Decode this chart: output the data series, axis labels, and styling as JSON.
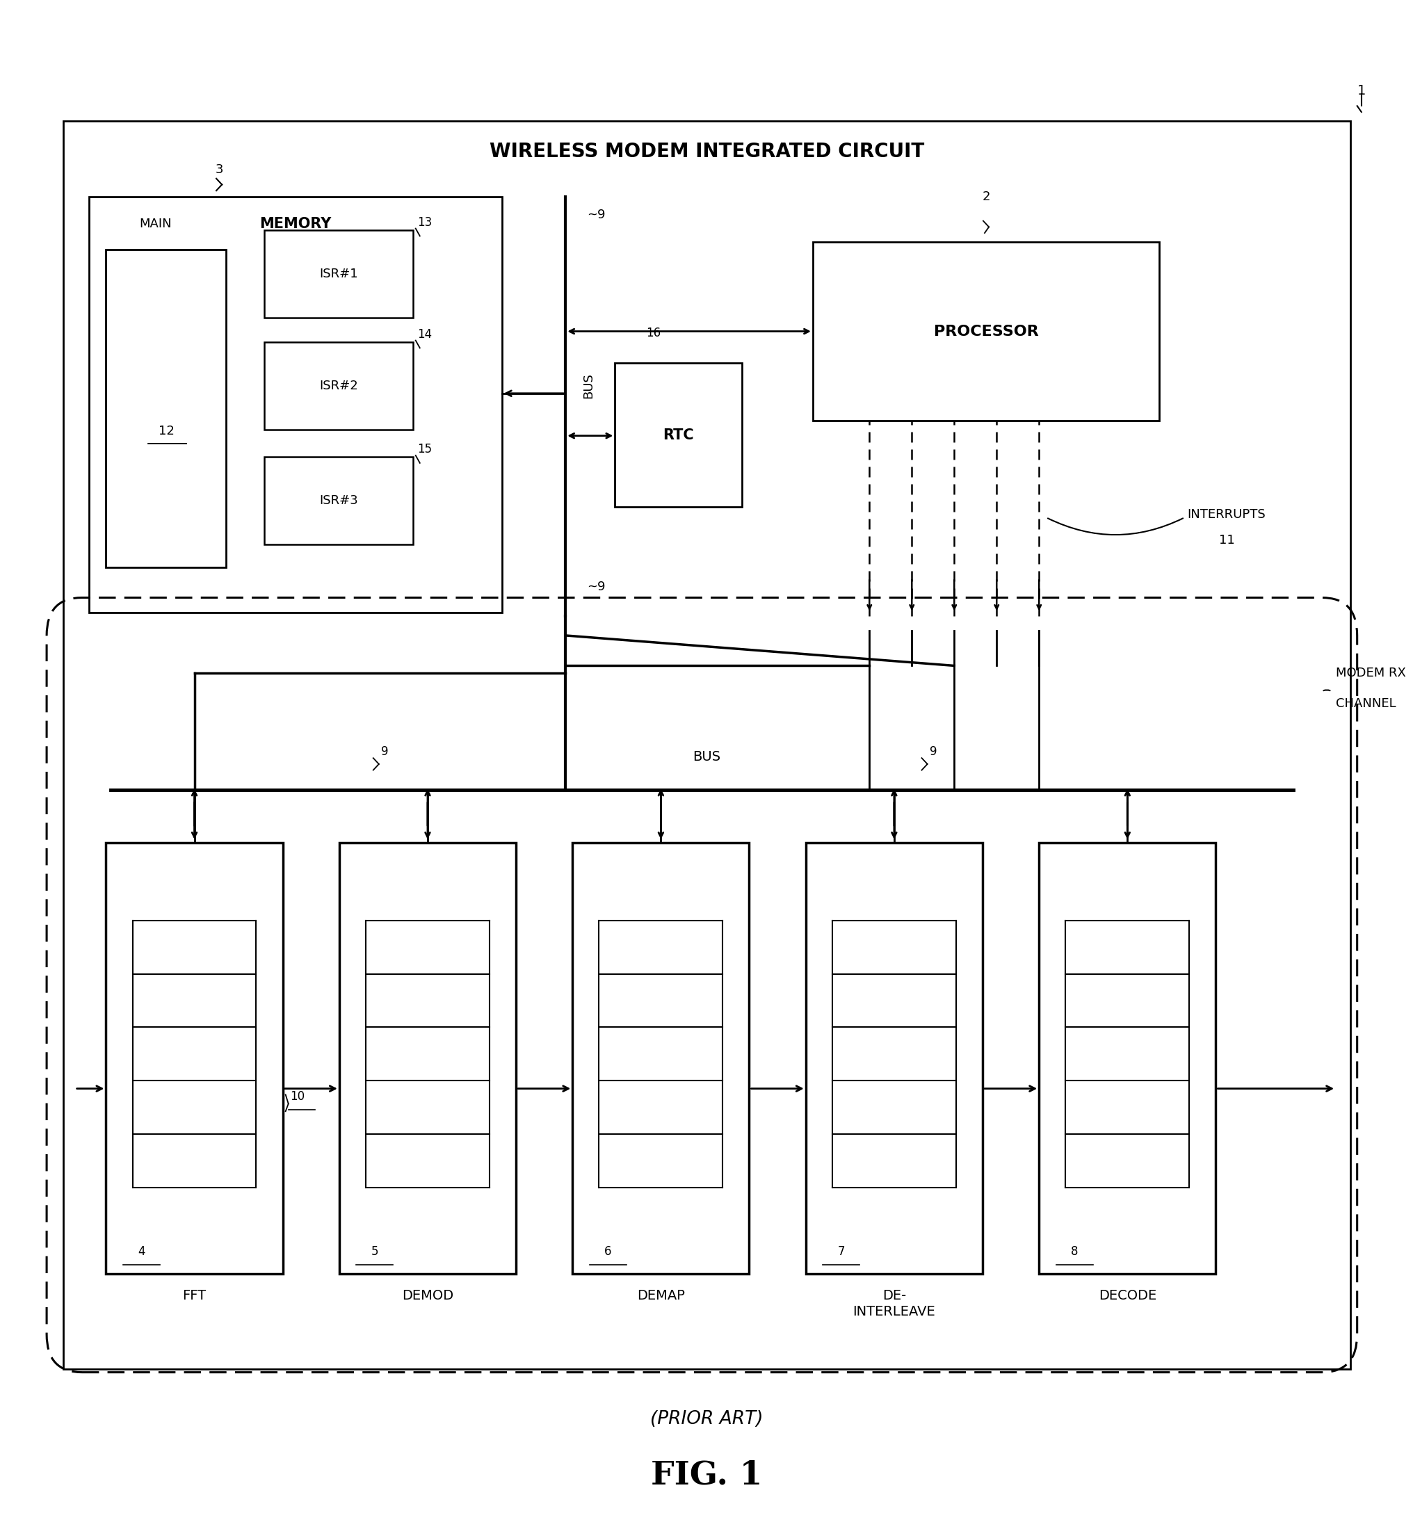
{
  "fig_width": 20.33,
  "fig_height": 21.76,
  "bg_color": "#ffffff",
  "title_text": "WIRELESS MODEM INTEGRATED CIRCUIT",
  "fig_label": "FIG. 1",
  "prior_art": "(PRIOR ART)",
  "ref1": "1",
  "memory_label": "MEMORY",
  "memory_ref": "3",
  "main_label": "MAIN",
  "main_ref": "12",
  "isr1_label": "ISR#1",
  "isr1_ref": "13",
  "isr2_label": "ISR#2",
  "isr2_ref": "14",
  "isr3_label": "ISR#3",
  "isr3_ref": "15",
  "processor_label": "PROCESSOR",
  "processor_ref": "2",
  "rtc_label": "RTC",
  "rtc_ref": "16",
  "bus_label": "BUS",
  "bus9_label": "~9",
  "interrupts_label": "INTERRUPTS",
  "interrupts_ref": "11",
  "modem_rx_label": "MODEM RX\nCHANNEL",
  "bus_lower_label": "BUS",
  "fft_label": "FFT",
  "fft_ref": "4",
  "fft_reg_ref": "10",
  "demod_label": "DEMOD",
  "demod_ref": "5",
  "demap_label": "DEMAP",
  "demap_ref": "6",
  "deint_label": "DE-\nINTERLEAVE",
  "deint_ref": "7",
  "decode_label": "DECODE",
  "decode_ref": "8"
}
